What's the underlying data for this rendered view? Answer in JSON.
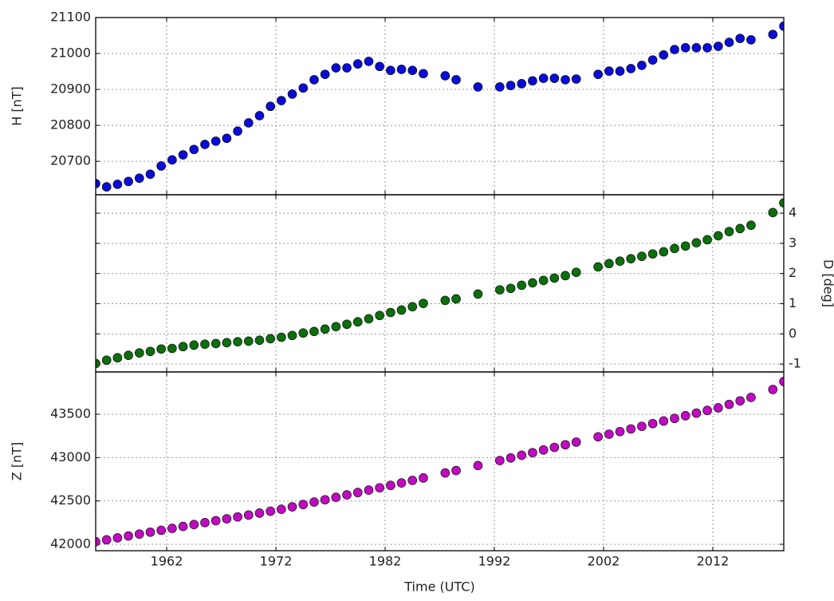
{
  "chart_data": [
    {
      "type": "scatter",
      "ylabel": "H [nT]",
      "color": "#0b0bd6",
      "ylim": [
        20607,
        21100
      ],
      "yticks": [
        20700,
        20800,
        20900,
        21000,
        21100
      ],
      "yaxis_side": "left",
      "grid": true,
      "xlim": [
        1955.5,
        2018.5
      ],
      "xticks": [
        1962,
        1972,
        1982,
        1992,
        2002,
        2012
      ],
      "x": [
        1955.5,
        1956.5,
        1957.5,
        1958.5,
        1959.5,
        1960.5,
        1961.5,
        1962.5,
        1963.5,
        1964.5,
        1965.5,
        1966.5,
        1967.5,
        1968.5,
        1969.5,
        1970.5,
        1971.5,
        1972.5,
        1973.5,
        1974.5,
        1975.5,
        1976.5,
        1977.5,
        1978.5,
        1979.5,
        1980.5,
        1981.5,
        1982.5,
        1983.5,
        1984.5,
        1985.5,
        1987.5,
        1988.5,
        1990.5,
        1992.5,
        1993.5,
        1994.5,
        1995.5,
        1996.5,
        1997.5,
        1998.5,
        1999.5,
        2001.5,
        2002.5,
        2003.5,
        2004.5,
        2005.5,
        2006.5,
        2007.5,
        2008.5,
        2009.5,
        2010.5,
        2011.5,
        2012.5,
        2013.5,
        2014.5,
        2015.5,
        2017.5,
        2018.5
      ],
      "values": [
        20638,
        20629,
        20636,
        20644,
        20653,
        20664,
        20687,
        20704,
        20718,
        20733,
        20747,
        20756,
        20764,
        20784,
        20807,
        20827,
        20853,
        20869,
        20887,
        20904,
        20927,
        20942,
        20960,
        20960,
        20971,
        20978,
        20964,
        20953,
        20956,
        20953,
        20944,
        20938,
        20927,
        20907,
        20907,
        20911,
        20916,
        20924,
        20931,
        20931,
        20927,
        20929,
        20942,
        20951,
        20951,
        20958,
        20967,
        20982,
        20996,
        21011,
        21016,
        21016,
        21016,
        21020,
        21031,
        21042,
        21038,
        21053,
        21076
      ]
    },
    {
      "type": "scatter",
      "ylabel": "D [deg]",
      "color": "#0c6e0c",
      "ylim": [
        -1.26,
        4.61
      ],
      "yticks": [
        -1,
        0,
        1,
        2,
        3,
        4
      ],
      "yaxis_side": "right",
      "grid": true,
      "xlim": [
        1955.5,
        2018.5
      ],
      "xticks": [
        1962,
        1972,
        1982,
        1992,
        2002,
        2012
      ],
      "x": [
        1955.5,
        1956.5,
        1957.5,
        1958.5,
        1959.5,
        1960.5,
        1961.5,
        1962.5,
        1963.5,
        1964.5,
        1965.5,
        1966.5,
        1967.5,
        1968.5,
        1969.5,
        1970.5,
        1971.5,
        1972.5,
        1973.5,
        1974.5,
        1975.5,
        1976.5,
        1977.5,
        1978.5,
        1979.5,
        1980.5,
        1981.5,
        1982.5,
        1983.5,
        1984.5,
        1985.5,
        1987.5,
        1988.5,
        1990.5,
        1992.5,
        1993.5,
        1994.5,
        1995.5,
        1996.5,
        1997.5,
        1998.5,
        1999.5,
        2001.5,
        2002.5,
        2003.5,
        2004.5,
        2005.5,
        2006.5,
        2007.5,
        2008.5,
        2009.5,
        2010.5,
        2011.5,
        2012.5,
        2013.5,
        2014.5,
        2015.5,
        2017.5,
        2018.5
      ],
      "values": [
        -0.98,
        -0.87,
        -0.79,
        -0.71,
        -0.63,
        -0.58,
        -0.5,
        -0.48,
        -0.42,
        -0.37,
        -0.34,
        -0.32,
        -0.29,
        -0.26,
        -0.24,
        -0.21,
        -0.16,
        -0.11,
        -0.05,
        0.03,
        0.08,
        0.16,
        0.24,
        0.32,
        0.4,
        0.5,
        0.61,
        0.71,
        0.79,
        0.9,
        1.01,
        1.11,
        1.16,
        1.32,
        1.46,
        1.51,
        1.61,
        1.69,
        1.77,
        1.85,
        1.93,
        2.04,
        2.22,
        2.33,
        2.41,
        2.49,
        2.57,
        2.65,
        2.72,
        2.83,
        2.91,
        3.02,
        3.12,
        3.25,
        3.39,
        3.49,
        3.6,
        4.02,
        4.34
      ]
    },
    {
      "type": "scatter",
      "ylabel": "Z [nT]",
      "xlabel": "Time (UTC)",
      "color": "#bf0bbf",
      "ylim": [
        41926,
        43988
      ],
      "yticks": [
        42000,
        42500,
        43000,
        43500
      ],
      "yaxis_side": "left",
      "grid": true,
      "xlim": [
        1955.5,
        2018.5
      ],
      "xticks": [
        1962,
        1972,
        1982,
        1992,
        2002,
        2012
      ],
      "x": [
        1955.5,
        1956.5,
        1957.5,
        1958.5,
        1959.5,
        1960.5,
        1961.5,
        1962.5,
        1963.5,
        1964.5,
        1965.5,
        1966.5,
        1967.5,
        1968.5,
        1969.5,
        1970.5,
        1971.5,
        1972.5,
        1973.5,
        1974.5,
        1975.5,
        1976.5,
        1977.5,
        1978.5,
        1979.5,
        1980.5,
        1981.5,
        1982.5,
        1983.5,
        1984.5,
        1985.5,
        1987.5,
        1988.5,
        1990.5,
        1992.5,
        1993.5,
        1994.5,
        1995.5,
        1996.5,
        1997.5,
        1998.5,
        1999.5,
        2001.5,
        2002.5,
        2003.5,
        2004.5,
        2005.5,
        2006.5,
        2007.5,
        2008.5,
        2009.5,
        2010.5,
        2011.5,
        2012.5,
        2013.5,
        2014.5,
        2015.5,
        2017.5,
        2018.5
      ],
      "values": [
        42030,
        42052,
        42074,
        42096,
        42118,
        42140,
        42162,
        42184,
        42206,
        42228,
        42250,
        42272,
        42294,
        42316,
        42338,
        42360,
        42382,
        42404,
        42432,
        42459,
        42487,
        42514,
        42542,
        42570,
        42597,
        42625,
        42652,
        42680,
        42708,
        42737,
        42765,
        42823,
        42851,
        42908,
        42966,
        42996,
        43027,
        43057,
        43088,
        43118,
        43148,
        43179,
        43240,
        43270,
        43300,
        43331,
        43361,
        43392,
        43422,
        43452,
        43483,
        43513,
        43544,
        43574,
        43614,
        43654,
        43694,
        43785,
        43877
      ]
    }
  ]
}
